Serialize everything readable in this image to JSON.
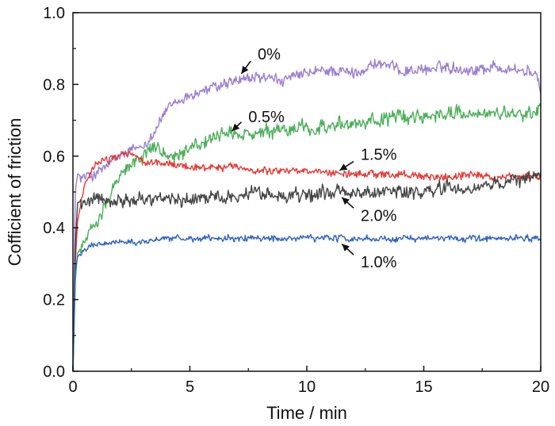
{
  "chart_data": {
    "type": "line",
    "xlabel": "Time / min",
    "ylabel": "Cofficient of friction",
    "xlim": [
      0,
      20
    ],
    "ylim": [
      0,
      1.0
    ],
    "xticks": [
      "0",
      "5",
      "10",
      "15",
      "20"
    ],
    "yticks": [
      "0.0",
      "0.2",
      "0.4",
      "0.6",
      "0.8",
      "1.0"
    ],
    "grid": false,
    "series": [
      {
        "name": "0%",
        "color": "#9b7fd0",
        "amp": 0.018,
        "x": [
          0,
          0.1,
          0.2,
          0.5,
          1,
          2,
          3,
          3.5,
          4,
          5,
          6,
          7,
          8,
          9,
          10,
          11,
          12,
          13,
          14,
          15,
          16,
          17,
          18,
          19,
          19.8,
          20
        ],
        "y": [
          0.0,
          0.5,
          0.55,
          0.54,
          0.55,
          0.6,
          0.63,
          0.67,
          0.73,
          0.77,
          0.79,
          0.81,
          0.82,
          0.81,
          0.83,
          0.84,
          0.83,
          0.86,
          0.84,
          0.84,
          0.85,
          0.84,
          0.85,
          0.84,
          0.83,
          0.77
        ]
      },
      {
        "name": "0.5%",
        "color": "#4caf5a",
        "amp": 0.022,
        "x": [
          0,
          0.1,
          0.2,
          0.5,
          1,
          2,
          3,
          3.5,
          4,
          5,
          6,
          7,
          8,
          9,
          10,
          11,
          12,
          13,
          14,
          15,
          16,
          17,
          18,
          19,
          20
        ],
        "y": [
          0.0,
          0.25,
          0.33,
          0.36,
          0.42,
          0.55,
          0.6,
          0.63,
          0.6,
          0.62,
          0.65,
          0.66,
          0.66,
          0.67,
          0.68,
          0.68,
          0.69,
          0.7,
          0.71,
          0.71,
          0.72,
          0.72,
          0.72,
          0.71,
          0.73
        ]
      },
      {
        "name": "1.5%",
        "color": "#e53935",
        "amp": 0.012,
        "x": [
          0,
          0.1,
          0.2,
          0.5,
          1,
          2,
          2.5,
          3,
          4,
          5,
          6,
          7,
          8,
          9,
          10,
          11,
          12,
          13,
          14,
          15,
          16,
          17,
          18,
          19,
          20
        ],
        "y": [
          0.0,
          0.3,
          0.42,
          0.52,
          0.58,
          0.6,
          0.61,
          0.58,
          0.58,
          0.57,
          0.57,
          0.57,
          0.56,
          0.56,
          0.56,
          0.55,
          0.55,
          0.55,
          0.55,
          0.54,
          0.54,
          0.55,
          0.54,
          0.54,
          0.54
        ]
      },
      {
        "name": "2.0%",
        "color": "#454545",
        "amp": 0.022,
        "x": [
          0,
          0.1,
          0.2,
          0.5,
          1,
          2,
          3,
          4,
          5,
          6,
          7,
          8,
          9,
          10,
          11,
          12,
          13,
          14,
          15,
          16,
          17,
          18,
          19,
          20
        ],
        "y": [
          0.0,
          0.35,
          0.47,
          0.48,
          0.48,
          0.48,
          0.48,
          0.48,
          0.48,
          0.49,
          0.49,
          0.5,
          0.49,
          0.49,
          0.5,
          0.5,
          0.5,
          0.5,
          0.5,
          0.51,
          0.51,
          0.52,
          0.53,
          0.55
        ]
      },
      {
        "name": "1.0%",
        "color": "#2f62c0",
        "amp": 0.01,
        "x": [
          0,
          0.1,
          0.2,
          0.5,
          1,
          2,
          3,
          4,
          5,
          6,
          7,
          8,
          9,
          10,
          11,
          12,
          13,
          14,
          15,
          16,
          17,
          18,
          19,
          20
        ],
        "y": [
          0.0,
          0.28,
          0.32,
          0.34,
          0.35,
          0.36,
          0.36,
          0.37,
          0.37,
          0.37,
          0.37,
          0.37,
          0.37,
          0.37,
          0.37,
          0.37,
          0.37,
          0.37,
          0.37,
          0.37,
          0.37,
          0.37,
          0.37,
          0.37
        ]
      }
    ],
    "annotations": [
      {
        "text": "0%",
        "tx": 7.9,
        "ty": 0.885,
        "ax": 7.6,
        "ay": 0.865,
        "px": 7.2,
        "py": 0.83
      },
      {
        "text": "0.5%",
        "tx": 7.5,
        "ty": 0.71,
        "ax": 7.2,
        "ay": 0.695,
        "px": 6.8,
        "py": 0.67
      },
      {
        "text": "1.5%",
        "tx": 12.3,
        "ty": 0.605,
        "ax": 12.0,
        "ay": 0.585,
        "px": 11.4,
        "py": 0.56
      },
      {
        "text": "2.0%",
        "tx": 12.3,
        "ty": 0.435,
        "ax": 12.0,
        "ay": 0.455,
        "px": 11.5,
        "py": 0.485
      },
      {
        "text": "1.0%",
        "tx": 12.3,
        "ty": 0.305,
        "ax": 12.0,
        "ay": 0.325,
        "px": 11.5,
        "py": 0.355
      }
    ]
  }
}
